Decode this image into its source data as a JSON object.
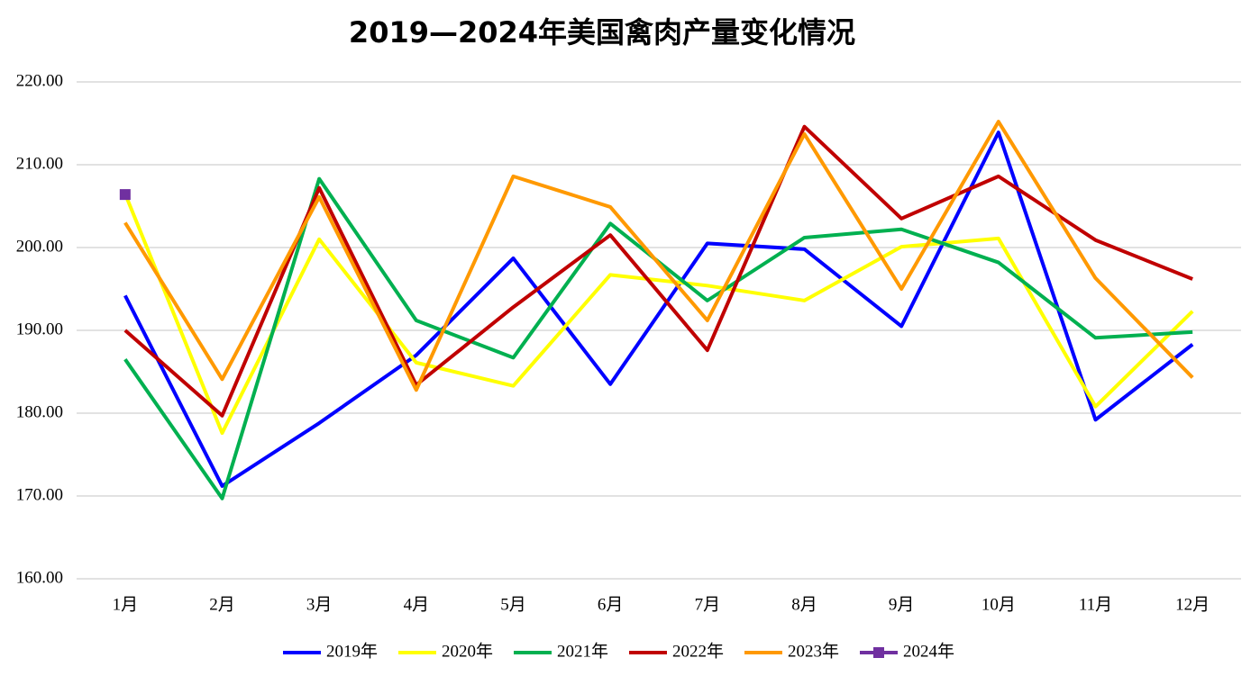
{
  "chart_data": {
    "type": "line",
    "title": "2019—2024年美国禽肉产量变化情况",
    "categories": [
      "1月",
      "2月",
      "3月",
      "4月",
      "5月",
      "6月",
      "7月",
      "8月",
      "9月",
      "10月",
      "11月",
      "12月"
    ],
    "series": [
      {
        "name": "2019年",
        "color": "#0000ff",
        "values": [
          194.2,
          171.2,
          178.8,
          187.0,
          198.7,
          183.5,
          200.5,
          199.8,
          190.5,
          213.9,
          179.2,
          188.3
        ]
      },
      {
        "name": "2020年",
        "color": "#ffff00",
        "values": [
          206.5,
          177.6,
          201.0,
          186.1,
          183.3,
          196.7,
          195.4,
          193.6,
          200.1,
          201.1,
          180.8,
          192.3
        ]
      },
      {
        "name": "2021年",
        "color": "#00b050",
        "values": [
          186.5,
          169.7,
          208.3,
          191.2,
          186.7,
          202.9,
          193.6,
          201.2,
          202.2,
          198.2,
          189.1,
          189.8
        ]
      },
      {
        "name": "2022年",
        "color": "#c00000",
        "values": [
          190.0,
          179.7,
          207.2,
          183.4,
          192.8,
          201.5,
          187.6,
          214.6,
          203.5,
          208.6,
          200.9,
          196.2
        ]
      },
      {
        "name": "2023年",
        "color": "#ff9900",
        "values": [
          203.0,
          184.1,
          206.1,
          182.8,
          208.6,
          204.9,
          191.2,
          213.7,
          195.0,
          215.2,
          196.3,
          184.3
        ]
      },
      {
        "name": "2024年",
        "color": "#7030a0",
        "marker": "square",
        "values": [
          206.4,
          null,
          null,
          null,
          null,
          null,
          null,
          null,
          null,
          null,
          null,
          null
        ]
      }
    ],
    "ylim": [
      160,
      220
    ],
    "yticks": [
      {
        "value": 160,
        "label": "160.00"
      },
      {
        "value": 170,
        "label": "170.00"
      },
      {
        "value": 180,
        "label": "180.00"
      },
      {
        "value": 190,
        "label": "190.00"
      },
      {
        "value": 200,
        "label": "200.00"
      },
      {
        "value": 210,
        "label": "210.00"
      },
      {
        "value": 220,
        "label": "220.00"
      }
    ],
    "grid": true,
    "legend": "bottom"
  }
}
